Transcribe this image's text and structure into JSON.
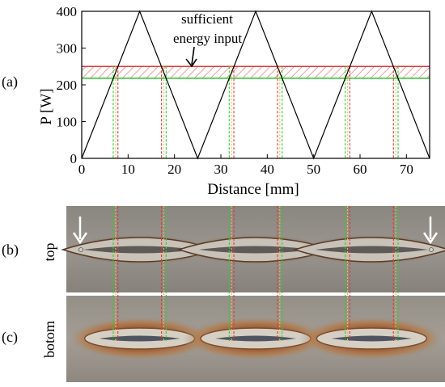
{
  "chart_data": {
    "type": "line",
    "panel_label": "(a)",
    "xlabel": "Distance [mm]",
    "ylabel": "P [W]",
    "xlim": [
      0,
      75
    ],
    "ylim": [
      0,
      400
    ],
    "xticks": [
      "0",
      "10",
      "20",
      "30",
      "40",
      "50",
      "60",
      "70"
    ],
    "yticks": [
      "0",
      "100",
      "200",
      "300",
      "400"
    ],
    "series": [
      {
        "x": [
          0,
          12.5,
          25,
          37.5,
          50,
          62.5,
          75
        ],
        "y": [
          0,
          400,
          0,
          400,
          0,
          400,
          0
        ],
        "color": "#000000"
      }
    ],
    "threshold_band": {
      "lower": 218,
      "upper": 250,
      "hatched": true
    },
    "annotation": {
      "line1": "sufficient",
      "line2": "energy input"
    },
    "red_lines_x": [
      7.8,
      17.2,
      32.8,
      42.2,
      57.8,
      67.2
    ],
    "green_lines_x": [
      6.8,
      18.2,
      31.8,
      43.2,
      56.8,
      68.2
    ],
    "yellow_lines_x": [
      7.3,
      17.7,
      32.3,
      42.7,
      57.3,
      67.7
    ],
    "colors": {
      "red": "#e0393b",
      "green": "#37c83c",
      "yellow": "#d8c84a",
      "hatch": "#e06a5a"
    }
  },
  "photo_panels": [
    {
      "panel_label": "(b)",
      "side_label": "top"
    },
    {
      "panel_label": "(c)",
      "side_label": "botom"
    }
  ]
}
